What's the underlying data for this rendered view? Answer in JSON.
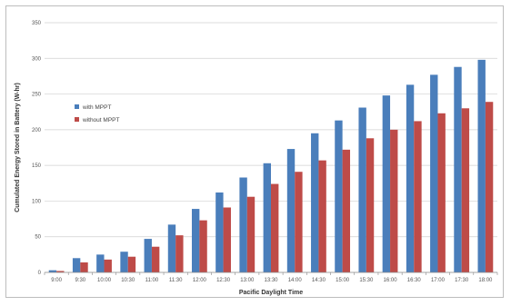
{
  "chart_data": {
    "type": "bar",
    "title": "",
    "xlabel": "Pacific Daylight Time",
    "ylabel": "Cumulated Energy Stored in Battery (W-hr)",
    "ylim": [
      0,
      350
    ],
    "yticks": [
      0,
      50,
      100,
      150,
      200,
      250,
      300,
      350
    ],
    "grid": true,
    "legend": "left-center",
    "categories": [
      "9:00",
      "9:30",
      "10:00",
      "10:30",
      "11:00",
      "11:30",
      "12:00",
      "12:30",
      "13:00",
      "13:30",
      "14:00",
      "14:30",
      "15:00",
      "15:30",
      "16:00",
      "16:30",
      "17:00",
      "17:30",
      "18:00"
    ],
    "series": [
      {
        "name": "with MPPT",
        "color": "#4a7ebb",
        "values": [
          3,
          20,
          25,
          29,
          47,
          67,
          89,
          112,
          133,
          153,
          173,
          195,
          213,
          231,
          248,
          263,
          277,
          288,
          298
        ]
      },
      {
        "name": "without MPPT",
        "color": "#be4b48",
        "values": [
          2,
          14,
          18,
          22,
          36,
          52,
          73,
          91,
          106,
          124,
          141,
          157,
          172,
          188,
          200,
          212,
          223,
          230,
          239
        ]
      }
    ]
  }
}
